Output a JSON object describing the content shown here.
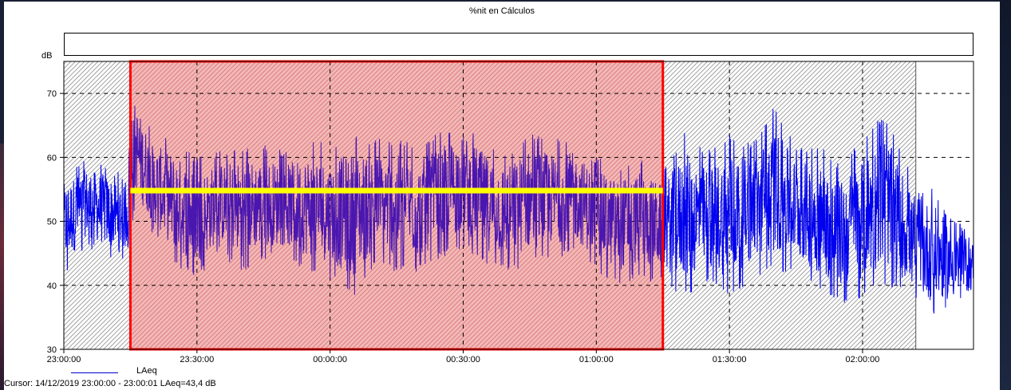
{
  "window": {
    "title": "%nit en Cálculos",
    "cursor_text": "Cursor: 14/12/2019 23:00:00 - 23:00:01  LAeq=43,4 dB"
  },
  "legend": {
    "series_name": "LAeq",
    "line_color": "#0000cc"
  },
  "colors": {
    "series": "#0000ee",
    "series_in_selection": "#4a16b0",
    "selection_border": "#ff0000",
    "selection_fill": "#e88888",
    "hatch_region": "#9a9a9a",
    "average_line": "#ffff00",
    "grid": "#000000"
  },
  "chart_data": {
    "type": "line",
    "title": "%nit en Cálculos",
    "ylabel": "dB",
    "xlabel": "",
    "y_unit_label": "dB",
    "ylim": [
      30,
      75
    ],
    "y_ticks": [
      30,
      40,
      50,
      60,
      70
    ],
    "x_start": "23:00:00",
    "x_end": "02:25:00",
    "x_ticks": [
      "23:00:00",
      "23:30:00",
      "00:00:00",
      "00:30:00",
      "01:00:00",
      "01:30:00",
      "02:00:00"
    ],
    "x_tick_minutes": [
      0,
      30,
      60,
      90,
      120,
      150,
      180
    ],
    "x_range_minutes": [
      0,
      205
    ],
    "grid": true,
    "legend_placement": "bottom-left",
    "excluded_regions": [
      {
        "start": "23:00:00",
        "end": "23:15:00",
        "start_minutes": 0,
        "end_minutes": 15
      },
      {
        "start": "01:15:00",
        "end": "02:12:00",
        "start_minutes": 135,
        "end_minutes": 192
      }
    ],
    "selection": {
      "start": "23:15:00",
      "end": "01:15:00",
      "start_minutes": 15,
      "end_minutes": 135
    },
    "average_level": {
      "value": 54.8,
      "start_minutes": 15,
      "end_minutes": 135
    },
    "series": [
      {
        "name": "LAeq",
        "envelope": {
          "minutes": [
            0,
            5,
            10,
            14,
            16,
            20,
            25,
            30,
            35,
            40,
            45,
            50,
            55,
            60,
            65,
            70,
            75,
            80,
            85,
            90,
            95,
            100,
            105,
            110,
            115,
            120,
            125,
            130,
            135,
            140,
            145,
            150,
            155,
            160,
            165,
            170,
            175,
            180,
            185,
            190,
            192,
            195,
            200,
            205
          ],
          "max": [
            58,
            60,
            59,
            57,
            71,
            64,
            63,
            60,
            61,
            62,
            62,
            61,
            63,
            62,
            64,
            63,
            63,
            62,
            64,
            66,
            63,
            61,
            64,
            63,
            63,
            60,
            59,
            60,
            58,
            64,
            61,
            64,
            62,
            68,
            62,
            62,
            59,
            63,
            67,
            59,
            54,
            56,
            51,
            48
          ],
          "min": [
            41,
            46,
            44,
            44,
            52,
            48,
            43,
            41,
            45,
            42,
            44,
            44,
            42,
            41,
            38,
            43,
            42,
            42,
            44,
            46,
            43,
            42,
            43,
            44,
            45,
            42,
            40,
            41,
            40,
            38,
            40,
            38,
            41,
            42,
            42,
            39,
            37,
            38,
            40,
            38,
            37,
            35,
            36,
            38
          ]
        }
      }
    ]
  }
}
